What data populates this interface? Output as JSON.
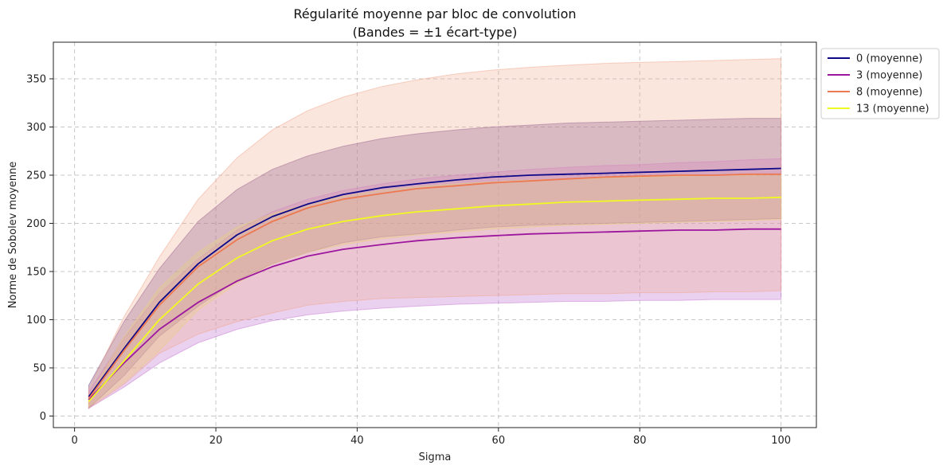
{
  "chart_data": {
    "type": "line",
    "title": "Régularité moyenne par bloc de convolution",
    "subtitle": "(Bandes = ±1 écart-type)",
    "xlabel": "Sigma",
    "ylabel": "Norme de Sobolev moyenne",
    "xlim": [
      -3,
      105
    ],
    "ylim": [
      -12,
      388
    ],
    "xticks": [
      0,
      20,
      40,
      60,
      80,
      100
    ],
    "yticks": [
      0,
      50,
      100,
      150,
      200,
      250,
      300,
      350
    ],
    "grid": true,
    "legend_position": "outside-top-right",
    "x": [
      2,
      7,
      12,
      17.5,
      23,
      28,
      33,
      38,
      43.5,
      48.5,
      54,
      59,
      64.5,
      69.5,
      75,
      80,
      85.5,
      90.5,
      95.5,
      100
    ],
    "series": [
      {
        "name": "0 (moyenne)",
        "color": "#0d0887",
        "band_color": "#7b4f8f",
        "band_opacity": 0.35,
        "mean": [
          20,
          70,
          118,
          158,
          188,
          207,
          220,
          230,
          237,
          241,
          245,
          248,
          250,
          251,
          252,
          253,
          254,
          255,
          256,
          257
        ],
        "upper": [
          32,
          98,
          153,
          202,
          235,
          256,
          270,
          280,
          288,
          293,
          297,
          300,
          302,
          304,
          305,
          306,
          307,
          308,
          309,
          309
        ],
        "lower": [
          8,
          42,
          83,
          114,
          141,
          158,
          170,
          180,
          186,
          189,
          193,
          196,
          198,
          199,
          200,
          201,
          202,
          203,
          204,
          205
        ]
      },
      {
        "name": "3 (moyenne)",
        "color": "#9c179e",
        "band_color": "#c77ad4",
        "band_opacity": 0.35,
        "mean": [
          17,
          55,
          90,
          118,
          140,
          155,
          166,
          173,
          178,
          182,
          185,
          187,
          189,
          190,
          191,
          192,
          193,
          193,
          194,
          194
        ],
        "upper": [
          25,
          81,
          127,
          163,
          193,
          212,
          225,
          234,
          241,
          246,
          250,
          253,
          256,
          258,
          260,
          261,
          263,
          264,
          266,
          267
        ],
        "lower": [
          8,
          30,
          55,
          76,
          90,
          99,
          105,
          109,
          112,
          114,
          116,
          117,
          118,
          119,
          119,
          120,
          120,
          121,
          121,
          121
        ]
      },
      {
        "name": "8 (moyenne)",
        "color": "#ed7953",
        "band_color": "#f0a58a",
        "band_opacity": 0.28,
        "mean": [
          18,
          68,
          115,
          155,
          183,
          202,
          216,
          225,
          231,
          236,
          239,
          242,
          244,
          246,
          248,
          249,
          250,
          250,
          251,
          251
        ],
        "upper": [
          28,
          103,
          165,
          225,
          268,
          297,
          317,
          331,
          342,
          349,
          355,
          359,
          362,
          364,
          366,
          367,
          368,
          369,
          370,
          371
        ],
        "lower": [
          8,
          33,
          65,
          85,
          98,
          107,
          115,
          119,
          122,
          123,
          124,
          125,
          126,
          127,
          127,
          128,
          128,
          129,
          129,
          130
        ]
      },
      {
        "name": "13 (moyenne)",
        "color": "#f0f921",
        "band_color": "#e8d27a",
        "band_opacity": 0.3,
        "mean": [
          15,
          57,
          100,
          137,
          164,
          182,
          194,
          202,
          208,
          212,
          215,
          218,
          220,
          222,
          223,
          224,
          225,
          226,
          226,
          227
        ],
        "upper": [
          20,
          82,
          133,
          170,
          196,
          210,
          220,
          228,
          234,
          238,
          241,
          243,
          245,
          246,
          247,
          248,
          249,
          250,
          250,
          251
        ],
        "lower": [
          10,
          35,
          68,
          110,
          138,
          158,
          170,
          178,
          184,
          188,
          191,
          194,
          196,
          198,
          199,
          200,
          201,
          202,
          203,
          204
        ]
      }
    ]
  }
}
